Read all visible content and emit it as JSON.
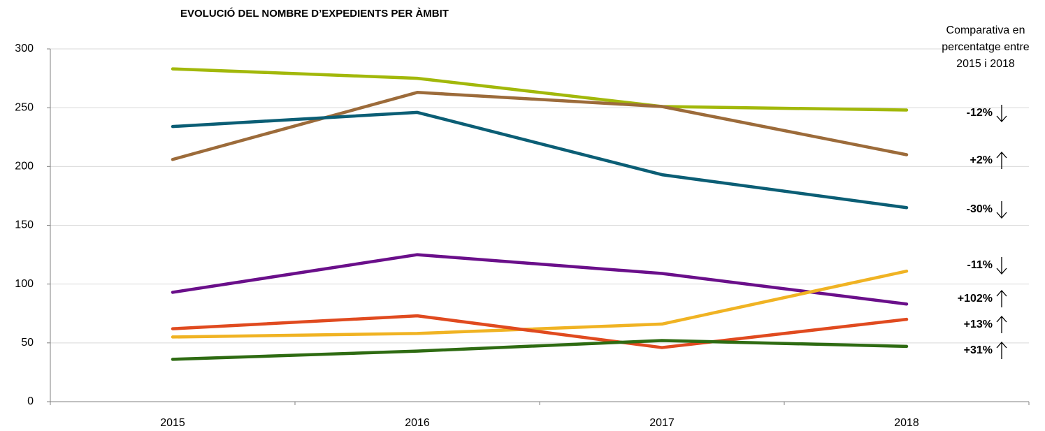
{
  "chart_data": {
    "type": "line",
    "title": "EVOLUCIÓ DEL NOMBRE D’EXPEDIENTS PER ÀMBIT",
    "note": [
      "Comparativa en",
      "percentatge entre",
      "2015 i 2018"
    ],
    "categories": [
      "2015",
      "2016",
      "2017",
      "2018"
    ],
    "ylim": [
      0,
      300
    ],
    "yticks": [
      0,
      50,
      100,
      150,
      200,
      250,
      300
    ],
    "grid": true,
    "series": [
      {
        "color": "#a2b80a",
        "values": [
          283,
          275,
          251,
          248
        ],
        "annotation": "-12%",
        "arrow": "down"
      },
      {
        "color": "#9c6b3a",
        "values": [
          206,
          263,
          251,
          210
        ],
        "annotation": "+2%",
        "arrow": "up"
      },
      {
        "color": "#0b5e75",
        "values": [
          234,
          246,
          193,
          165
        ],
        "annotation": "-30%",
        "arrow": "down"
      },
      {
        "color": "#6a0f8a",
        "values": [
          93,
          125,
          109,
          83
        ],
        "annotation": "-11%",
        "arrow": "down"
      },
      {
        "color": "#f0b323",
        "values": [
          55,
          58,
          66,
          111
        ],
        "annotation": "+102%",
        "arrow": "up"
      },
      {
        "color": "#e04a1f",
        "values": [
          62,
          73,
          46,
          70
        ],
        "annotation": "+13%",
        "arrow": "up"
      },
      {
        "color": "#2e6b12",
        "values": [
          36,
          43,
          52,
          47
        ],
        "annotation": "+31%",
        "arrow": "up"
      }
    ]
  }
}
